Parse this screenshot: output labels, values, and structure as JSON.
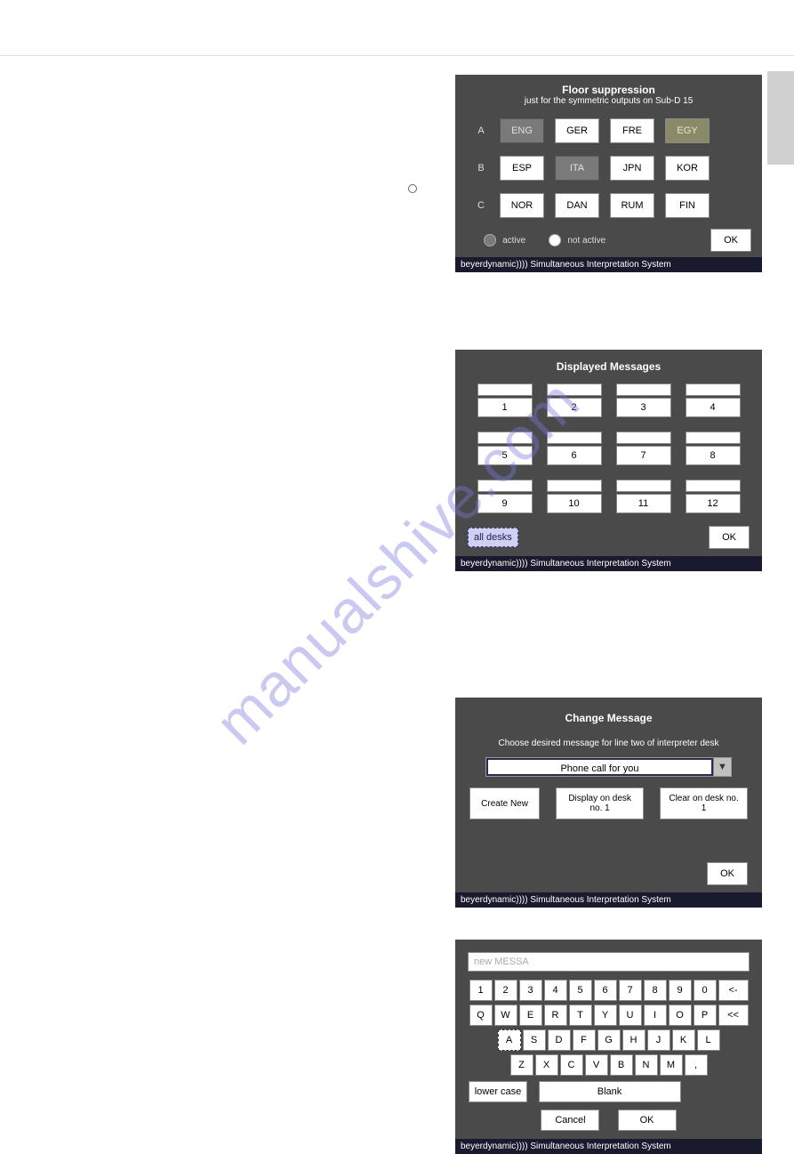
{
  "watermark": "manualshive.com",
  "panel1": {
    "title": "Floor suppression",
    "subtitle": "just for the symmetric outputs on Sub-D 15",
    "rows": [
      {
        "label": "A",
        "buttons": [
          {
            "text": "ENG",
            "state": "active"
          },
          {
            "text": "GER",
            "state": "normal"
          },
          {
            "text": "FRE",
            "state": "normal"
          },
          {
            "text": "EGY",
            "state": "special"
          }
        ]
      },
      {
        "label": "B",
        "buttons": [
          {
            "text": "ESP",
            "state": "normal"
          },
          {
            "text": "ITA",
            "state": "active"
          },
          {
            "text": "JPN",
            "state": "normal"
          },
          {
            "text": "KOR",
            "state": "normal"
          }
        ]
      },
      {
        "label": "C",
        "buttons": [
          {
            "text": "NOR",
            "state": "normal"
          },
          {
            "text": "DAN",
            "state": "normal"
          },
          {
            "text": "RUM",
            "state": "normal"
          },
          {
            "text": "FIN",
            "state": "normal"
          }
        ]
      }
    ],
    "legend_active": "active",
    "legend_not_active": "not active",
    "ok": "OK",
    "footer": "beyerdynamic)))) Simultaneous Interpretation System"
  },
  "panel2": {
    "title": "Displayed Messages",
    "slots": [
      "1",
      "2",
      "3",
      "4",
      "5",
      "6",
      "7",
      "8",
      "9",
      "10",
      "11",
      "12"
    ],
    "all_desks": "all desks",
    "ok": "OK",
    "footer": "beyerdynamic)))) Simultaneous Interpretation System"
  },
  "panel3": {
    "title": "Change Message",
    "instruction": "Choose desired message for line two of interpreter desk",
    "selected": "Phone call for you",
    "btn_create": "Create New",
    "btn_display": "Display on desk no. 1",
    "btn_clear": "Clear on desk no. 1",
    "ok": "OK",
    "footer": "beyerdynamic)))) Simultaneous Interpretation System"
  },
  "panel4": {
    "input_value": "new MESSA",
    "row_num": [
      "1",
      "2",
      "3",
      "4",
      "5",
      "6",
      "7",
      "8",
      "9",
      "0",
      "<-"
    ],
    "row_q": [
      "Q",
      "W",
      "E",
      "R",
      "T",
      "Y",
      "U",
      "I",
      "O",
      "P",
      "<<"
    ],
    "row_a": [
      "A",
      "S",
      "D",
      "F",
      "G",
      "H",
      "J",
      "K",
      "L"
    ],
    "row_z": [
      "Z",
      "X",
      "C",
      "V",
      "B",
      "N",
      "M",
      ","
    ],
    "lower": "lower case",
    "blank": "Blank",
    "cancel": "Cancel",
    "ok": "OK",
    "footer": "beyerdynamic)))) Simultaneous Interpretation System"
  }
}
